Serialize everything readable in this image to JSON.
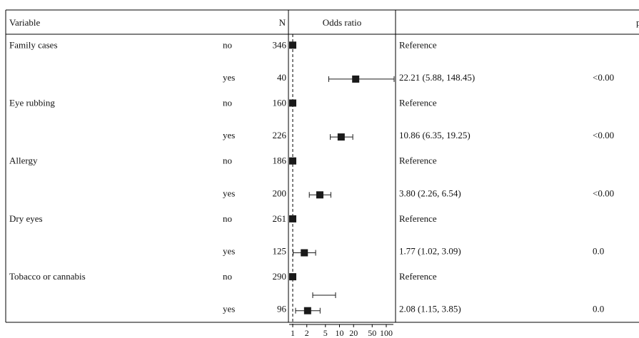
{
  "chart_data": {
    "type": "forest",
    "headers": {
      "variable": "Variable",
      "n": "N",
      "plot": "Odds ratio",
      "estimate": "",
      "p": "p"
    },
    "x_scale": "log",
    "xlim": [
      1,
      160
    ],
    "x_ticks": [
      1,
      2,
      5,
      10,
      20,
      50,
      100
    ],
    "x_tick_labels": [
      "1",
      "2",
      "5",
      "10",
      "20",
      "50",
      "100"
    ],
    "reference_line": 1,
    "rows": [
      {
        "variable": "Family cases",
        "level": "no",
        "n": "346",
        "or": 1,
        "lo": null,
        "hi": null,
        "text": "Reference",
        "p": ""
      },
      {
        "variable": "",
        "level": "yes",
        "n": "40",
        "or": 22.21,
        "lo": 5.88,
        "hi": 148.45,
        "text": "22.21 (5.88, 148.45)",
        "p": "<0.00"
      },
      {
        "variable": "Eye rubbing",
        "level": "no",
        "n": "160",
        "or": 1,
        "lo": null,
        "hi": null,
        "text": "Reference",
        "p": ""
      },
      {
        "variable": "",
        "level": "yes",
        "n": "226",
        "or": 10.86,
        "lo": 6.35,
        "hi": 19.25,
        "text": "10.86 (6.35, 19.25)",
        "p": "<0.00"
      },
      {
        "variable": "Allergy",
        "level": "no",
        "n": "186",
        "or": 1,
        "lo": null,
        "hi": null,
        "text": "Reference",
        "p": ""
      },
      {
        "variable": "",
        "level": "yes",
        "n": "200",
        "or": 3.8,
        "lo": 2.26,
        "hi": 6.54,
        "text": "3.80 (2.26, 6.54)",
        "p": "<0.00"
      },
      {
        "variable": "Dry eyes",
        "level": "no",
        "n": "261",
        "or": 1,
        "lo": null,
        "hi": null,
        "text": "Reference",
        "p": ""
      },
      {
        "variable": "",
        "level": "yes",
        "n": "125",
        "or": 1.77,
        "lo": 1.02,
        "hi": 3.09,
        "text": "1.77 (1.02, 3.09)",
        "p": "0.0"
      },
      {
        "variable": "Tobacco or cannabis",
        "level": "no",
        "n": "290",
        "or": 1,
        "lo": null,
        "hi": null,
        "text": "Reference",
        "p": ""
      },
      {
        "variable": "",
        "level": "yes",
        "n": "96",
        "or": 2.08,
        "lo": 1.15,
        "hi": 3.85,
        "text": "2.08 (1.15, 3.85)",
        "p": "0.0"
      }
    ],
    "colors": {
      "marker": "#1a1a1a",
      "line": "#1a1a1a",
      "grid": "#000000"
    }
  }
}
